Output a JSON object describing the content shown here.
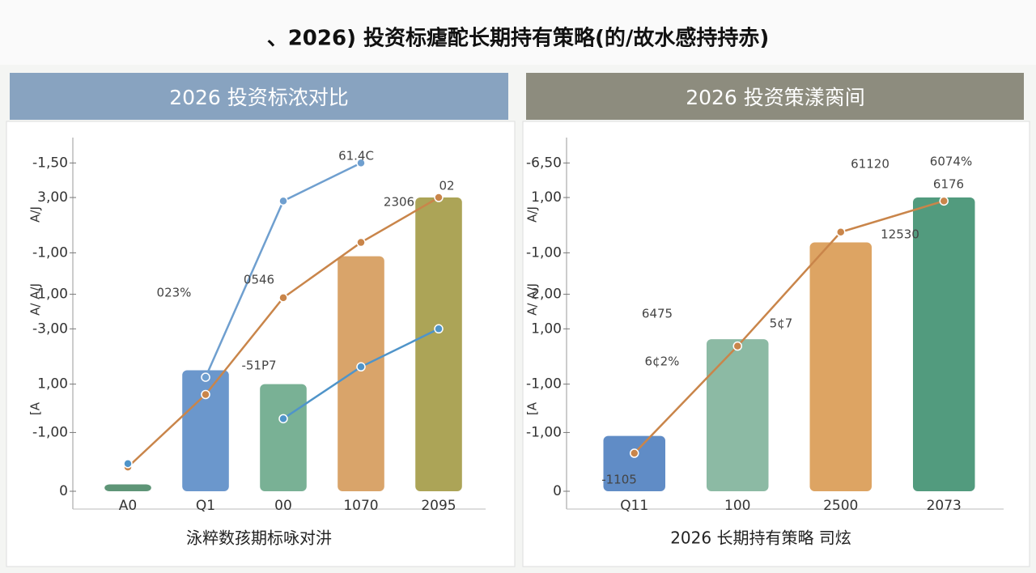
{
  "title": "、2026) 投资标瘧酡长期持有策略(的/故水感持持赤)",
  "chart_data": [
    {
      "type": "bar",
      "title": "2026 投资标浓对比",
      "xlabel": "泳粹数孩期标咏对汫",
      "ylabel_parts": [
        "A/J",
        "A/ A/J",
        "[A"
      ],
      "categories": [
        "A0",
        "Q1",
        "00",
        "1070",
        "2095"
      ],
      "values": [
        2,
        35,
        31,
        68,
        85
      ],
      "colors": [
        "#4d8a68",
        "#5b8cc6",
        "#6aa88a",
        "#d59a5a",
        "#a39a45"
      ],
      "series": [
        {
          "color": "#6f9fcf",
          "values": [
            null,
            33,
            84,
            95,
            null
          ]
        },
        {
          "color": "#c9854a",
          "values": [
            7,
            28,
            56,
            72,
            85
          ]
        },
        {
          "color": "#4f94c9",
          "values": [
            8,
            null,
            21,
            36,
            47
          ]
        }
      ],
      "ylim": [
        0,
        100
      ],
      "yticks": [
        {
          "value": 95,
          "label": "-1,50"
        },
        {
          "value": 85,
          "label": "3,00"
        },
        {
          "value": 69,
          "label": "-1,00"
        },
        {
          "value": 57,
          "label": "1,00"
        },
        {
          "value": 47,
          "label": "-3,00"
        },
        {
          "value": 31,
          "label": "1,00"
        },
        {
          "value": 17,
          "label": "-1,00"
        },
        0
      ],
      "annotations": [
        "023%",
        "0546",
        "-51P7",
        "61.4C",
        "2306",
        "02"
      ]
    },
    {
      "type": "bar",
      "title": "2026 投资策漾脔间",
      "xlabel": "2026 长期持有策略 司炫",
      "ylabel_parts": [
        "A/J",
        "A/ A/J",
        "[A"
      ],
      "categories": [
        "Q11",
        "100",
        "2500",
        "2073"
      ],
      "values": [
        16,
        44,
        72,
        85
      ],
      "colors": [
        "#4f80c0",
        "#7fb39a",
        "#d99a52",
        "#3f9070"
      ],
      "series": [
        {
          "color": "#c9854a",
          "values": [
            11,
            42,
            75,
            84
          ]
        }
      ],
      "ylim": [
        0,
        100
      ],
      "yticks": [
        {
          "value": 95,
          "label": "-6,50"
        },
        {
          "value": 85,
          "label": "1,00"
        },
        {
          "value": 69,
          "label": "-1,00"
        },
        {
          "value": 57,
          "label": "2,00"
        },
        {
          "value": 47,
          "label": "1,00"
        },
        {
          "value": 31,
          "label": "-1,00"
        },
        {
          "value": 17,
          "label": "-1,00"
        },
        0
      ],
      "annotations": [
        "6475",
        "6¢2%",
        "5¢7",
        "61120",
        "6074%",
        "6176",
        "12530",
        "-1105"
      ]
    }
  ]
}
